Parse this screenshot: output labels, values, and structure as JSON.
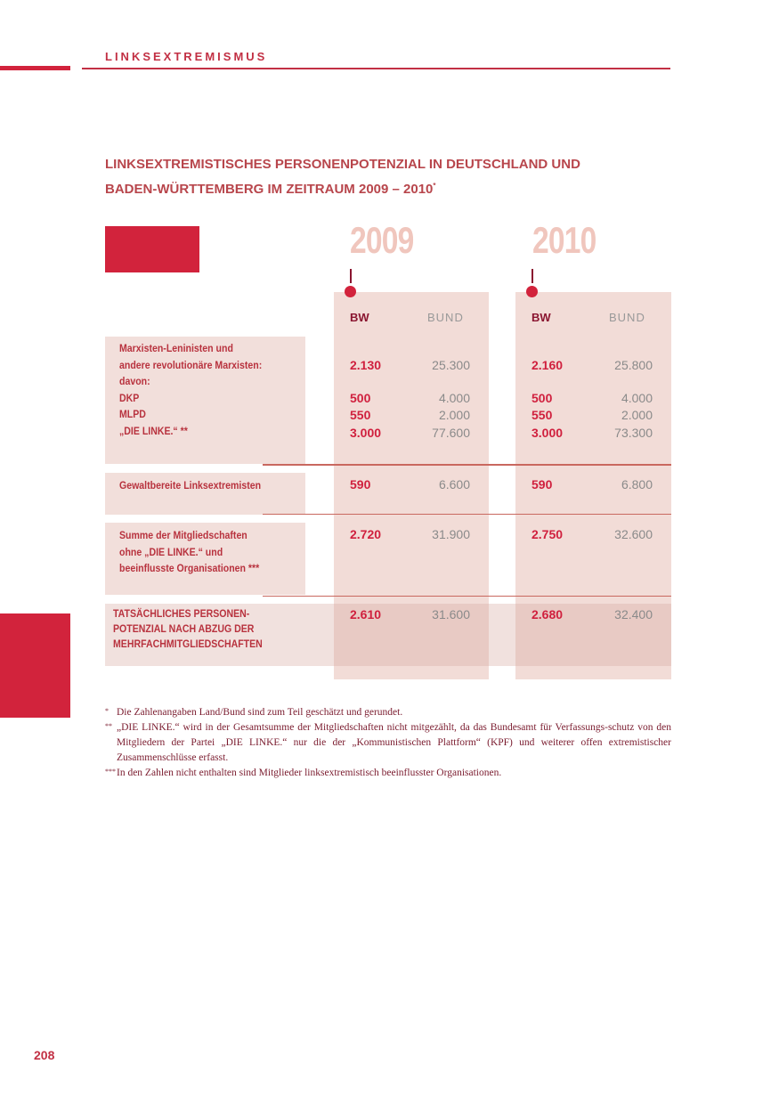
{
  "header": {
    "section": "LINKSEXTREMISMUS"
  },
  "title": {
    "line1": "LINKSEXTREMISTISCHES PERSONENPOTENZIAL IN DEUTSCHLAND UND",
    "line2": "BADEN-WÜRTTEMBERG IM ZEITRAUM 2009 – 2010",
    "marker": "*"
  },
  "years": [
    "2009",
    "2010"
  ],
  "col_headers": {
    "bw": "BW",
    "bund": "BUND"
  },
  "rows": [
    {
      "label": [
        "Marxisten-Leninisten und",
        "andere revolutionäre Marxisten:",
        "davon:",
        "DKP",
        "MLPD",
        "„DIE LINKE.“ **"
      ],
      "values": [
        [
          "2.130",
          "25.300",
          "2.160",
          "25.800"
        ],
        [
          "500",
          "4.000",
          "500",
          "4.000"
        ],
        [
          "550",
          "2.000",
          "550",
          "2.000"
        ],
        [
          "3.000",
          "77.600",
          "3.000",
          "73.300"
        ]
      ]
    },
    {
      "label": [
        "Gewaltbereite Linksextremisten"
      ],
      "values": [
        [
          "590",
          "6.600",
          "590",
          "6.800"
        ]
      ]
    },
    {
      "label": [
        "Summe der Mitgliedschaften",
        "ohne „DIE LINKE.“ und",
        "beeinflusste Organisationen ***"
      ],
      "values": [
        [
          "2.720",
          "31.900",
          "2.750",
          "32.600"
        ]
      ]
    },
    {
      "label": [
        "TATSÄCHLICHES PERSONEN-",
        "POTENZIAL NACH ABZUG DER",
        "MEHRFACHMITGLIEDSCHAFTEN"
      ],
      "values": [
        [
          "2.610",
          "31.600",
          "2.680",
          "32.400"
        ]
      ]
    }
  ],
  "footnotes": [
    {
      "mark": "*",
      "text": "Die Zahlenangaben Land/Bund sind zum Teil geschätzt und gerundet."
    },
    {
      "mark": "**",
      "text": "„DIE LINKE.“ wird in der Gesamtsumme der Mitgliedschaften nicht mitgezählt, da das Bundesamt für Verfassungs-schutz von den Mitgliedern der Partei „DIE LINKE.“ nur die der „Kommunistischen Plattform“ (KPF) und weiterer offen extremistischer Zusammenschlüsse erfasst."
    },
    {
      "mark": "***",
      "text": "In den Zahlen nicht enthalten sind Mitglieder linksextremistisch beeinflusster Organisationen."
    }
  ],
  "page_number": "208"
}
